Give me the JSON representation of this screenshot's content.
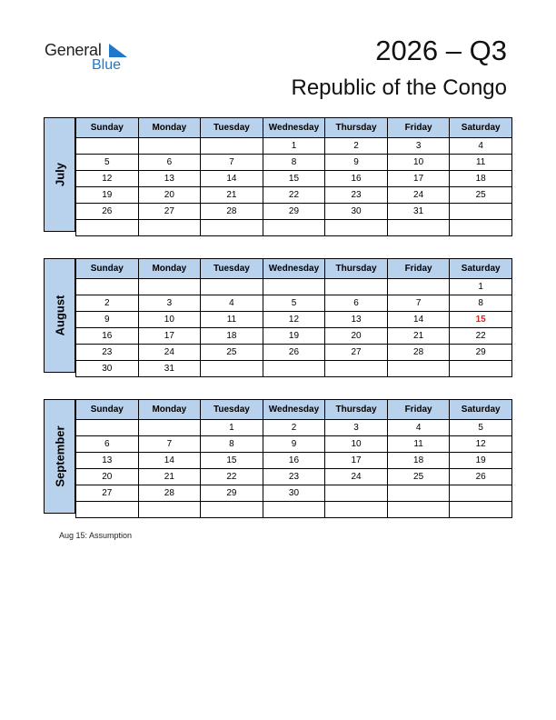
{
  "header": {
    "logo_general": "General",
    "logo_blue": "Blue",
    "title": "2026 – Q3",
    "country": "Republic of the Congo"
  },
  "weekdays": [
    "Sunday",
    "Monday",
    "Tuesday",
    "Wednesday",
    "Thursday",
    "Friday",
    "Saturday"
  ],
  "months": [
    {
      "name": "July",
      "rows": [
        [
          "",
          "",
          "",
          "1",
          "2",
          "3",
          "4"
        ],
        [
          "5",
          "6",
          "7",
          "8",
          "9",
          "10",
          "11"
        ],
        [
          "12",
          "13",
          "14",
          "15",
          "16",
          "17",
          "18"
        ],
        [
          "19",
          "20",
          "21",
          "22",
          "23",
          "24",
          "25"
        ],
        [
          "26",
          "27",
          "28",
          "29",
          "30",
          "31",
          ""
        ],
        [
          "",
          "",
          "",
          "",
          "",
          "",
          ""
        ]
      ]
    },
    {
      "name": "August",
      "rows": [
        [
          "",
          "",
          "",
          "",
          "",
          "",
          "1"
        ],
        [
          "2",
          "3",
          "4",
          "5",
          "6",
          "7",
          "8"
        ],
        [
          "9",
          "10",
          "11",
          "12",
          "13",
          "14",
          "15"
        ],
        [
          "16",
          "17",
          "18",
          "19",
          "20",
          "21",
          "22"
        ],
        [
          "23",
          "24",
          "25",
          "26",
          "27",
          "28",
          "29"
        ],
        [
          "30",
          "31",
          "",
          "",
          "",
          "",
          ""
        ]
      ],
      "holidays": [
        "15"
      ]
    },
    {
      "name": "September",
      "rows": [
        [
          "",
          "",
          "1",
          "2",
          "3",
          "4",
          "5"
        ],
        [
          "6",
          "7",
          "8",
          "9",
          "10",
          "11",
          "12"
        ],
        [
          "13",
          "14",
          "15",
          "16",
          "17",
          "18",
          "19"
        ],
        [
          "20",
          "21",
          "22",
          "23",
          "24",
          "25",
          "26"
        ],
        [
          "27",
          "28",
          "29",
          "30",
          "",
          "",
          ""
        ],
        [
          "",
          "",
          "",
          "",
          "",
          "",
          ""
        ]
      ]
    }
  ],
  "colors": {
    "header_fill": "#b8d1ec",
    "holiday": "#e0201a",
    "logo_blue": "#1f78c8"
  },
  "notes": [
    "Aug 15: Assumption"
  ]
}
